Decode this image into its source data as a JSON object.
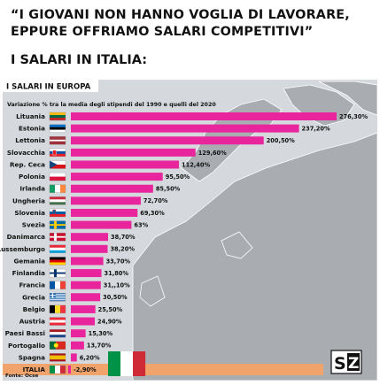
{
  "header": {
    "quote_line1": "“I GIOVANI NON HANNO VOGLIA DI LAVORARE,",
    "quote_line2": "EPPURE OFFRIAMO SALARI COMPETITIVI”",
    "subtitle": "I SALARI IN ITALIA:"
  },
  "chart_data": {
    "type": "bar",
    "orientation": "horizontal",
    "title": "I SALARI IN EUROPA",
    "subtitle": "Variazione % tra la media degli stipendi del 1990 e quelli del 2020",
    "source": "Fonte: Ocse",
    "categories": [
      "Lituania",
      "Estonia",
      "Lettonia",
      "Slovacchia",
      "Rep. Ceca",
      "Polonia",
      "Irlanda",
      "Ungheria",
      "Slovenia",
      "Svezia",
      "Danimarca",
      "Lussemburgo",
      "Gemania",
      "Finlandia",
      "Francia",
      "Grecia",
      "Belgio",
      "Austria",
      "Paesi Bassi",
      "Portogallo",
      "Spagna",
      "ITALIA"
    ],
    "values": [
      276.3,
      237.2,
      200.5,
      129.6,
      112.4,
      95.5,
      85.5,
      72.7,
      69.3,
      63,
      38.7,
      38.2,
      33.7,
      31.8,
      31.1,
      30.5,
      25.5,
      24.9,
      15.3,
      13.7,
      6.2,
      -2.9
    ],
    "value_labels": [
      "276,30%",
      "237,20%",
      "200,50%",
      "129,60%",
      "112,40%",
      "95,50%",
      "85,50%",
      "72,70%",
      "69,30%",
      "63%",
      "38,70%",
      "38,20%",
      "33,70%",
      "31,80%",
      "31,,10%",
      "30,50%",
      "25,50%",
      "24,90%",
      "15,30%",
      "13,70%",
      "6,20%",
      "-2,90%"
    ],
    "flags": [
      "lithuania",
      "estonia",
      "latvia",
      "slovakia",
      "czechia",
      "poland",
      "ireland",
      "hungary",
      "slovenia",
      "sweden",
      "denmark",
      "luxembourg",
      "germany",
      "finland",
      "france",
      "greece",
      "belgium",
      "austria",
      "netherlands",
      "portugal",
      "spain",
      "italy"
    ],
    "highlight_category": "ITALIA",
    "colors": {
      "bar": "#e8259c",
      "highlight_band": "#f0a36a",
      "map": "#a9adb2",
      "sea": "#d5d8dc"
    },
    "logo_text": "SZ"
  }
}
